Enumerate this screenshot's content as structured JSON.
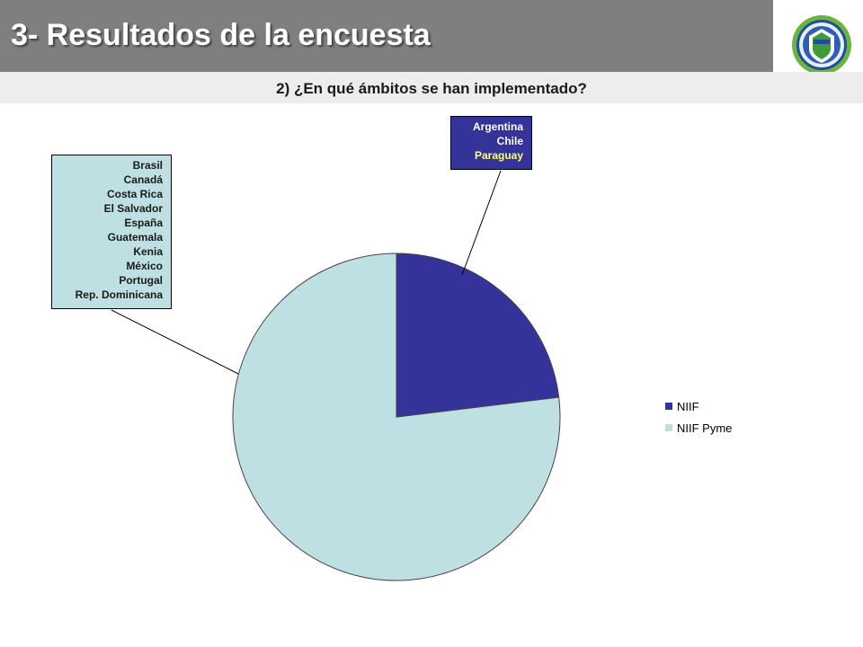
{
  "header": {
    "title": "3- Resultados de la encuesta"
  },
  "chart_data": {
    "type": "pie",
    "title": "2) ¿En qué ámbitos se han implementado?",
    "categories": [
      "NIIF",
      "NIIF Pyme"
    ],
    "values": [
      3,
      10
    ],
    "colors": [
      "#333399",
      "#bfe0e3"
    ],
    "legend_position": "right",
    "annotations": [
      {
        "series": "NIIF",
        "countries": [
          "Argentina",
          "Chile",
          "Paraguay"
        ],
        "highlight": "Paraguay",
        "highlight_color": "#ffff66"
      },
      {
        "series": "NIIF Pyme",
        "countries": [
          "Brasil",
          "Canadá",
          "Costa Rica",
          "El Salvador",
          "España",
          "Guatemala",
          "Kenia",
          "México",
          "Portugal",
          "Rep. Dominicana"
        ]
      }
    ]
  },
  "icons": {
    "logo": "seal-emblem-icon"
  }
}
